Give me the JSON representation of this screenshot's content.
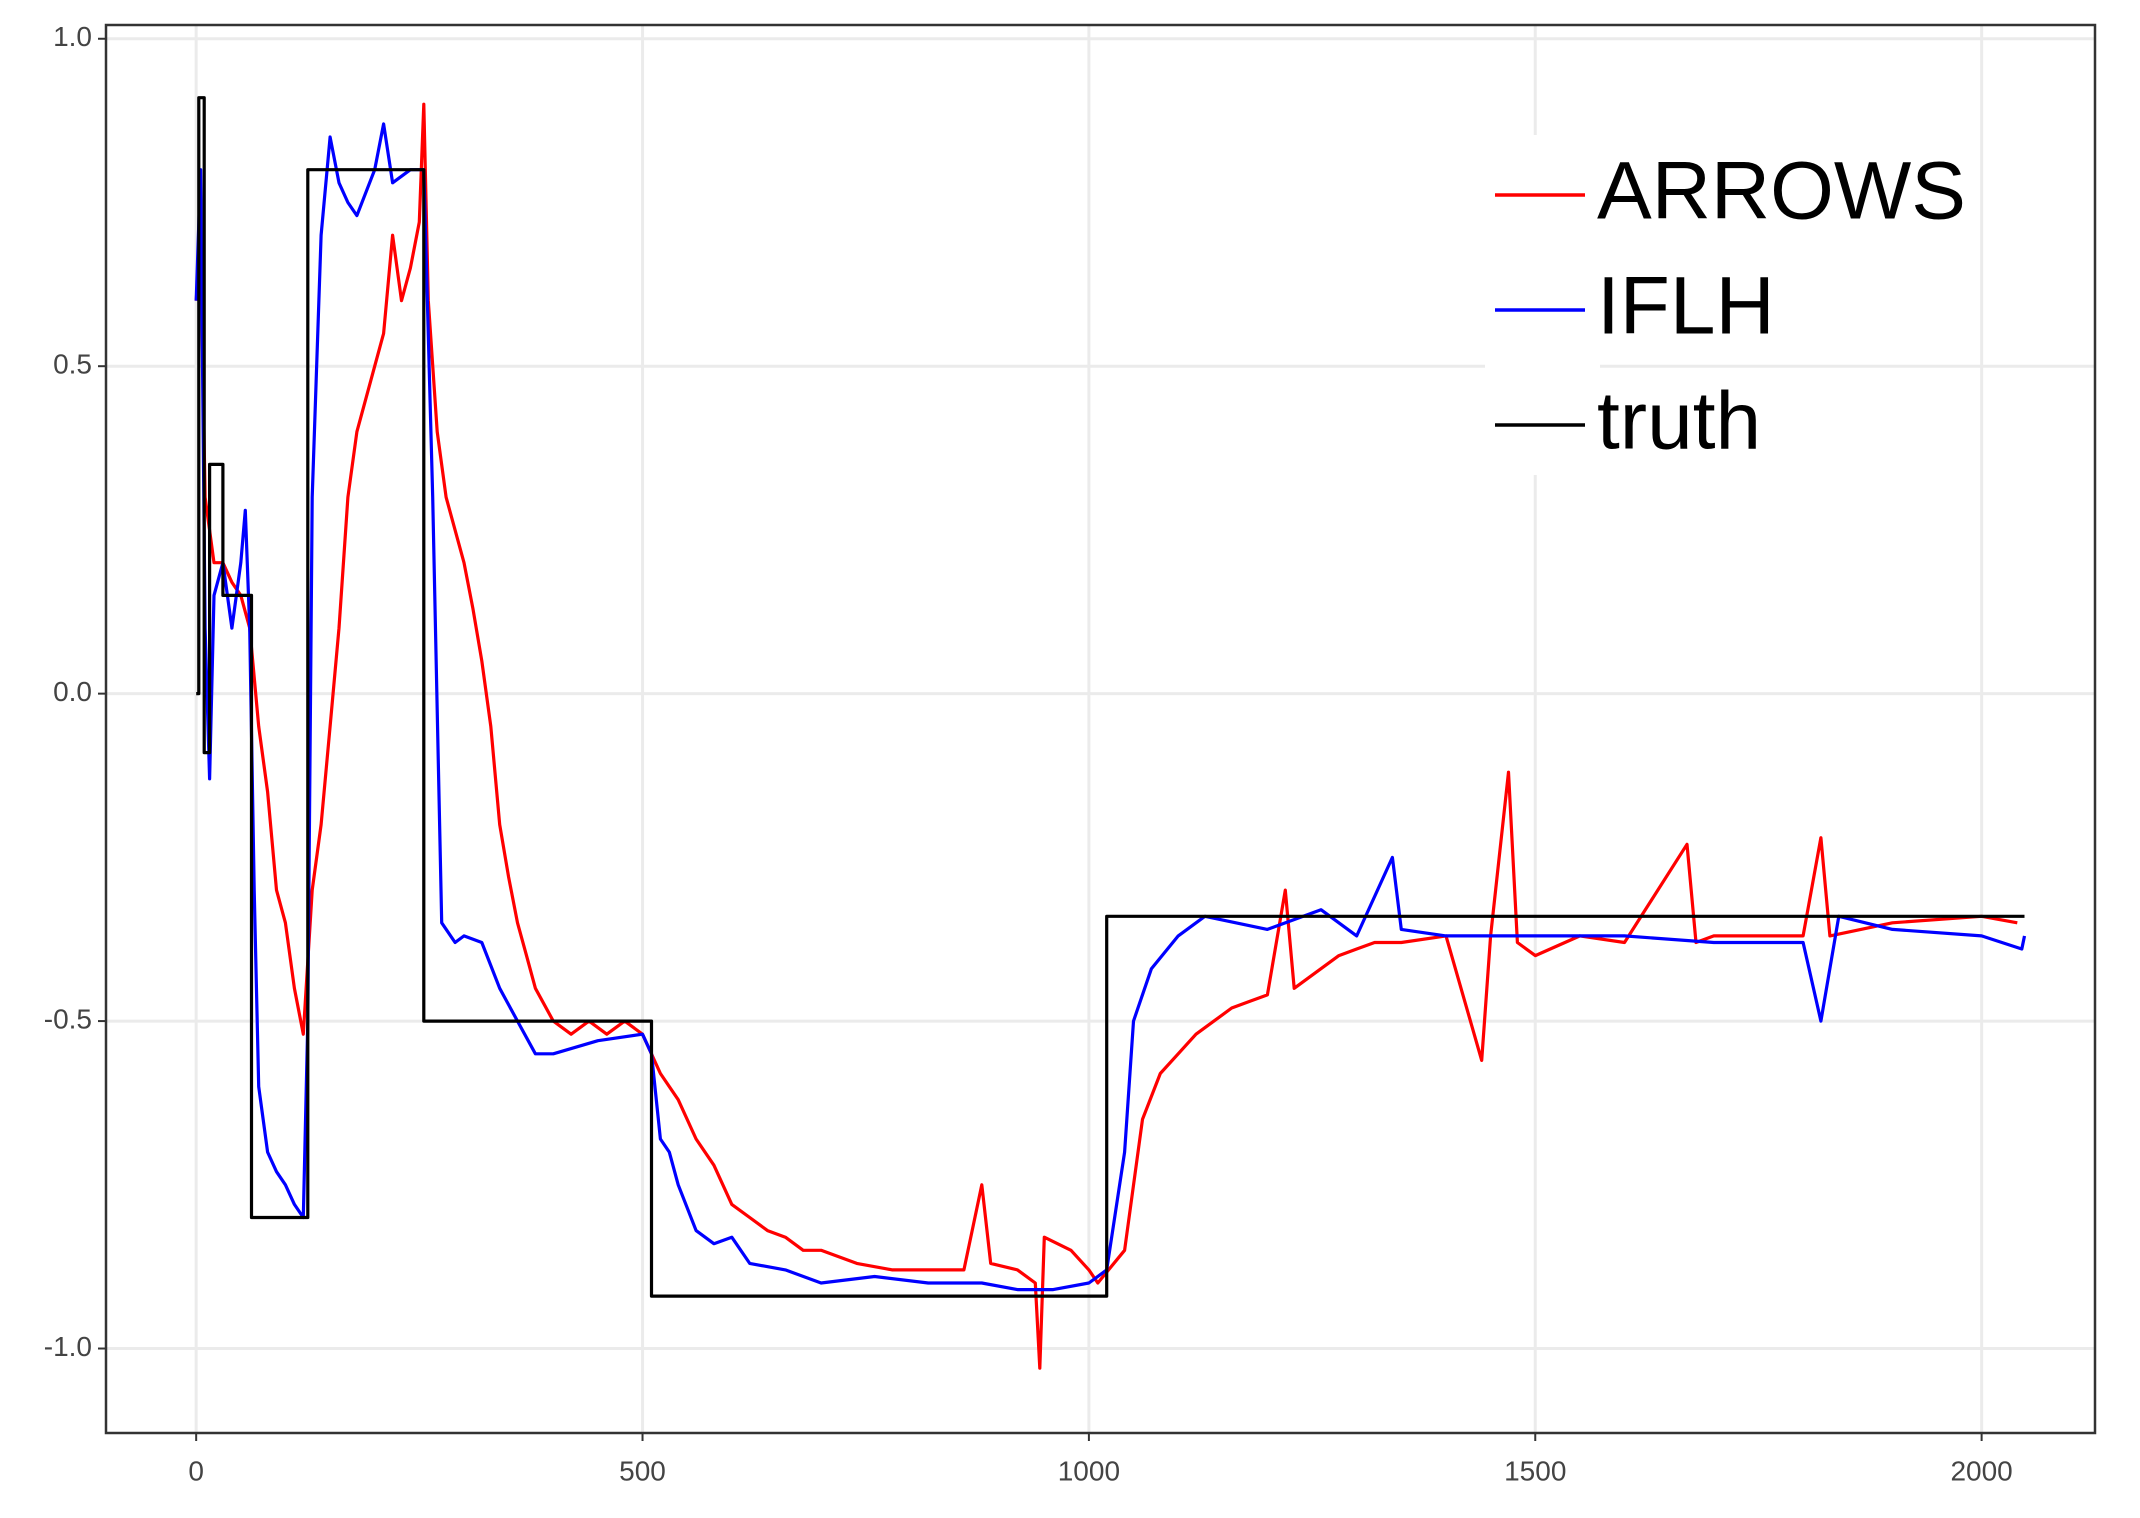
{
  "chart_data": {
    "type": "line",
    "xlim": [
      -101,
      2127
    ],
    "ylim": [
      -1.129,
      1.021
    ],
    "xticks": [
      0,
      500,
      1000,
      1500,
      2000
    ],
    "yticks": [
      {
        "value": -1,
        "label": "-1.0"
      },
      {
        "value": -0.5,
        "label": "-0.5"
      },
      {
        "value": 0,
        "label": "0.0"
      },
      {
        "value": 0.5,
        "label": "0.5"
      },
      {
        "value": 1,
        "label": "1.0"
      }
    ],
    "grid": true,
    "legend": "top-right",
    "series": [
      {
        "name": "ARROWS",
        "color": "#ff0000",
        "x": [
          0,
          5,
          10,
          20,
          30,
          40,
          50,
          60,
          70,
          80,
          90,
          100,
          110,
          120,
          130,
          140,
          150,
          160,
          170,
          180,
          190,
          200,
          210,
          220,
          230,
          240,
          250,
          255,
          260,
          270,
          280,
          300,
          310,
          320,
          330,
          340,
          350,
          360,
          370,
          380,
          400,
          420,
          440,
          460,
          480,
          500,
          520,
          540,
          560,
          580,
          600,
          620,
          640,
          660,
          680,
          700,
          740,
          780,
          820,
          860,
          880,
          890,
          920,
          940,
          945,
          950,
          980,
          1000,
          1010,
          1040,
          1060,
          1080,
          1100,
          1120,
          1140,
          1160,
          1180,
          1200,
          1220,
          1230,
          1250,
          1280,
          1300,
          1320,
          1350,
          1400,
          1440,
          1450,
          1470,
          1480,
          1500,
          1550,
          1600,
          1670,
          1680,
          1700,
          1800,
          1820,
          1830,
          1900,
          2000,
          2040
        ],
        "values": [
          0.6,
          0.7,
          0.3,
          0.2,
          0.2,
          0.17,
          0.15,
          0.1,
          -0.05,
          -0.15,
          -0.3,
          -0.35,
          -0.45,
          -0.52,
          -0.3,
          -0.2,
          -0.05,
          0.1,
          0.3,
          0.4,
          0.45,
          0.5,
          0.55,
          0.7,
          0.6,
          0.65,
          0.72,
          0.9,
          0.6,
          0.4,
          0.3,
          0.2,
          0.13,
          0.05,
          -0.05,
          -0.2,
          -0.28,
          -0.35,
          -0.4,
          -0.45,
          -0.5,
          -0.52,
          -0.5,
          -0.52,
          -0.5,
          -0.52,
          -0.58,
          -0.62,
          -0.68,
          -0.72,
          -0.78,
          -0.8,
          -0.82,
          -0.83,
          -0.85,
          -0.85,
          -0.87,
          -0.88,
          -0.88,
          -0.88,
          -0.75,
          -0.87,
          -0.88,
          -0.9,
          -1.03,
          -0.83,
          -0.85,
          -0.88,
          -0.9,
          -0.85,
          -0.65,
          -0.58,
          -0.55,
          -0.52,
          -0.5,
          -0.48,
          -0.47,
          -0.46,
          -0.3,
          -0.45,
          -0.43,
          -0.4,
          -0.39,
          -0.38,
          -0.38,
          -0.37,
          -0.56,
          -0.37,
          -0.12,
          -0.38,
          -0.4,
          -0.37,
          -0.38,
          -0.23,
          -0.38,
          -0.37,
          -0.37,
          -0.22,
          -0.37,
          -0.35,
          -0.34,
          -0.35
        ]
      },
      {
        "name": "IFLH",
        "color": "#0000ff",
        "x": [
          0,
          5,
          10,
          15,
          20,
          30,
          40,
          50,
          55,
          60,
          65,
          70,
          80,
          90,
          100,
          110,
          120,
          125,
          130,
          140,
          150,
          160,
          170,
          180,
          200,
          210,
          220,
          240,
          255,
          265,
          275,
          290,
          300,
          320,
          340,
          360,
          380,
          400,
          450,
          500,
          510,
          520,
          530,
          540,
          560,
          580,
          600,
          620,
          660,
          700,
          760,
          820,
          880,
          920,
          960,
          1000,
          1020,
          1040,
          1050,
          1070,
          1100,
          1130,
          1200,
          1260,
          1300,
          1340,
          1350,
          1400,
          1500,
          1600,
          1700,
          1800,
          1820,
          1840,
          1900,
          2000,
          2045,
          2048
        ],
        "values": [
          0.6,
          0.8,
          0.1,
          -0.13,
          0.15,
          0.2,
          0.1,
          0.2,
          0.28,
          0.1,
          -0.3,
          -0.6,
          -0.7,
          -0.73,
          -0.75,
          -0.78,
          -0.8,
          -0.5,
          0.3,
          0.7,
          0.85,
          0.78,
          0.75,
          0.73,
          0.8,
          0.87,
          0.78,
          0.8,
          0.8,
          0.3,
          -0.35,
          -0.38,
          -0.37,
          -0.38,
          -0.45,
          -0.5,
          -0.55,
          -0.55,
          -0.53,
          -0.52,
          -0.55,
          -0.68,
          -0.7,
          -0.75,
          -0.82,
          -0.84,
          -0.83,
          -0.87,
          -0.88,
          -0.9,
          -0.89,
          -0.9,
          -0.9,
          -0.91,
          -0.91,
          -0.9,
          -0.88,
          -0.7,
          -0.5,
          -0.42,
          -0.37,
          -0.34,
          -0.36,
          -0.33,
          -0.37,
          -0.25,
          -0.36,
          -0.37,
          -0.37,
          -0.37,
          -0.38,
          -0.38,
          -0.5,
          -0.34,
          -0.36,
          -0.37,
          -0.39,
          -0.37
        ]
      },
      {
        "name": "truth",
        "color": "#000000",
        "x": [
          0,
          3,
          3,
          9,
          9,
          15,
          15,
          30,
          30,
          62,
          62,
          125,
          125,
          255,
          255,
          510,
          510,
          1020,
          1020,
          2048
        ],
        "values": [
          0,
          0,
          0.91,
          0.91,
          -0.09,
          -0.09,
          0.35,
          0.35,
          0.15,
          0.15,
          -0.8,
          -0.8,
          0.8,
          0.8,
          -0.5,
          -0.5,
          -0.92,
          -0.92,
          -0.34,
          -0.34
        ]
      }
    ]
  }
}
